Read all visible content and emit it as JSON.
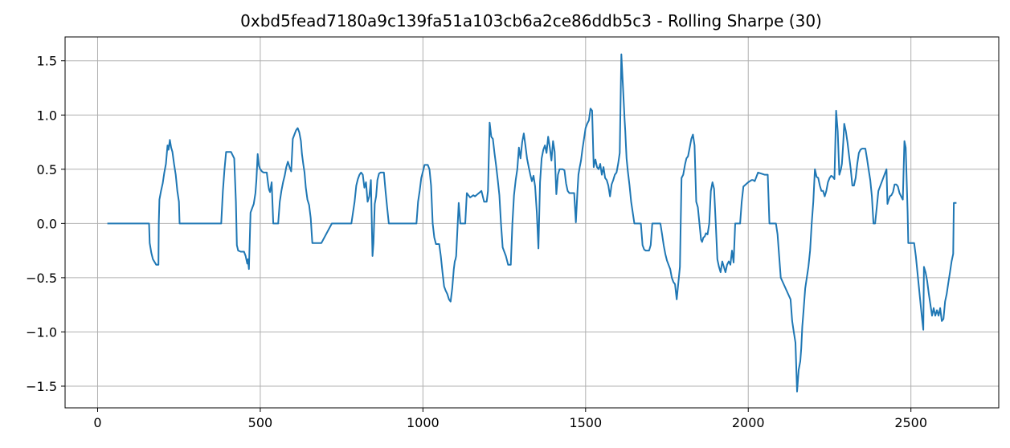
{
  "chart_data": {
    "type": "line",
    "title": "0xbd5fead7180a9c139fa51a103cb6a2ce86ddb5c3 - Rolling Sharpe (30)",
    "xlabel": "",
    "ylabel": "",
    "xlim": [
      -100,
      2770
    ],
    "ylim": [
      -1.7,
      1.72
    ],
    "xticks": [
      0,
      500,
      1000,
      1500,
      2000,
      2500
    ],
    "yticks": [
      -1.5,
      -1.0,
      -0.5,
      0.0,
      0.5,
      1.0,
      1.5
    ],
    "xtick_labels": [
      "0",
      "500",
      "1000",
      "1500",
      "2000",
      "2500"
    ],
    "ytick_labels": [
      "−1.5",
      "−1.0",
      "−0.5",
      "0.0",
      "0.5",
      "1.0",
      "1.5"
    ],
    "grid": true,
    "line_color": "#1f77b4",
    "series": [
      {
        "x": [
          30,
          158,
          160,
          165,
          170,
          180,
          187,
          188,
          190,
          195,
          200,
          205,
          210,
          215,
          218,
          222,
          226,
          230,
          235,
          240,
          245,
          250,
          252,
          255,
          380,
          385,
          390,
          395,
          400,
          410,
          420,
          425,
          428,
          432,
          440,
          445,
          450,
          455,
          460,
          462,
          465,
          470,
          475,
          480,
          485,
          488,
          492,
          496,
          500,
          505,
          510,
          515,
          520,
          525,
          527,
          530,
          535,
          540,
          550,
          555,
          560,
          565,
          570,
          575,
          580,
          585,
          590,
          595,
          600,
          605,
          610,
          615,
          620,
          625,
          628,
          632,
          636,
          640,
          645,
          650,
          655,
          660,
          665,
          670,
          675,
          680,
          685,
          688,
          720,
          730,
          780,
          790,
          795,
          800,
          805,
          810,
          815,
          820,
          825,
          830,
          835,
          840,
          845,
          848,
          852,
          856,
          860,
          865,
          870,
          875,
          880,
          885,
          890,
          895,
          900,
          980,
          985,
          990,
          995,
          1000,
          1005,
          1010,
          1015,
          1020,
          1025,
          1030,
          1035,
          1040,
          1045,
          1050,
          1055,
          1060,
          1065,
          1070,
          1075,
          1080,
          1085,
          1090,
          1095,
          1098,
          1100,
          1102,
          1110,
          1115,
          1118,
          1120,
          1125,
          1130,
          1135,
          1140,
          1145,
          1155,
          1160,
          1180,
          1188,
          1192,
          1196,
          1200,
          1205,
          1210,
          1215,
          1220,
          1225,
          1230,
          1235,
          1240,
          1245,
          1250,
          1255,
          1262,
          1266,
          1270,
          1275,
          1280,
          1285,
          1290,
          1295,
          1300,
          1305,
          1310,
          1315,
          1320,
          1325,
          1330,
          1335,
          1340,
          1345,
          1350,
          1355,
          1360,
          1365,
          1370,
          1375,
          1380,
          1385,
          1390,
          1395,
          1400,
          1405,
          1410,
          1415,
          1420,
          1425,
          1430,
          1435,
          1440,
          1445,
          1450,
          1455,
          1460,
          1465,
          1470,
          1475,
          1478,
          1482,
          1486,
          1490,
          1495,
          1500,
          1505,
          1510,
          1515,
          1520,
          1525,
          1530,
          1535,
          1540,
          1545,
          1550,
          1555,
          1560,
          1565,
          1570,
          1575,
          1580,
          1585,
          1590,
          1595,
          1600,
          1605,
          1610,
          1615,
          1620,
          1622,
          1624,
          1626,
          1630,
          1635,
          1640,
          1645,
          1650,
          1655,
          1660,
          1665,
          1670,
          1675,
          1680,
          1685,
          1690,
          1695,
          1700,
          1705,
          1710,
          1712,
          1715,
          1730,
          1735,
          1740,
          1745,
          1750,
          1755,
          1760,
          1765,
          1770,
          1775,
          1780,
          1785,
          1790,
          1795,
          1800,
          1803,
          1806,
          1810,
          1815,
          1820,
          1825,
          1830,
          1835,
          1840,
          1845,
          1850,
          1855,
          1858,
          1862,
          1866,
          1870,
          1875,
          1880,
          1885,
          1890,
          1895,
          1900,
          1905,
          1910,
          1915,
          1920,
          1925,
          1930,
          1935,
          1940,
          1945,
          1950,
          1955,
          1960,
          1965,
          1970,
          1975,
          1980,
          1985,
          2000,
          2010,
          2015,
          2020,
          2030,
          2040,
          2050,
          2060,
          2065,
          2070,
          2080,
          2085,
          2090,
          2095,
          2100,
          2130,
          2135,
          2140,
          2145,
          2150,
          2155,
          2160,
          2163,
          2166,
          2170,
          2175,
          2180,
          2185,
          2190,
          2195,
          2200,
          2205,
          2210,
          2215,
          2220,
          2225,
          2230,
          2235,
          2240,
          2245,
          2250,
          2255,
          2260,
          2265,
          2270,
          2275,
          2280,
          2285,
          2288,
          2290,
          2292,
          2295,
          2300,
          2305,
          2310,
          2315,
          2320,
          2325,
          2330,
          2335,
          2340,
          2345,
          2350,
          2355,
          2360,
          2365,
          2370,
          2375,
          2380,
          2385,
          2390,
          2395,
          2400,
          2425,
          2428,
          2430,
          2432,
          2435,
          2440,
          2445,
          2450,
          2455,
          2460,
          2465,
          2470,
          2475,
          2480,
          2484,
          2486,
          2488,
          2490,
          2492,
          2495,
          2500,
          2505,
          2510,
          2515,
          2520,
          2525,
          2530,
          2535,
          2538,
          2540,
          2545,
          2550,
          2555,
          2560,
          2565,
          2570,
          2575,
          2580,
          2585,
          2590,
          2595,
          2600,
          2605,
          2610,
          2615,
          2620,
          2625,
          2630,
          2632,
          2635,
          2640
        ],
        "y": [
          0.0,
          0.0,
          -0.18,
          -0.27,
          -0.33,
          -0.38,
          -0.38,
          0.0,
          0.22,
          0.3,
          0.37,
          0.47,
          0.55,
          0.72,
          0.68,
          0.77,
          0.7,
          0.66,
          0.55,
          0.45,
          0.3,
          0.2,
          0.0,
          0.0,
          0.0,
          0.3,
          0.5,
          0.66,
          0.66,
          0.66,
          0.6,
          0.2,
          -0.2,
          -0.25,
          -0.26,
          -0.26,
          -0.26,
          -0.3,
          -0.37,
          -0.33,
          -0.42,
          0.1,
          0.14,
          0.18,
          0.28,
          0.4,
          0.64,
          0.53,
          0.5,
          0.48,
          0.47,
          0.47,
          0.47,
          0.35,
          0.31,
          0.29,
          0.38,
          0.0,
          0.0,
          0.0,
          0.2,
          0.3,
          0.38,
          0.44,
          0.52,
          0.57,
          0.52,
          0.48,
          0.78,
          0.82,
          0.86,
          0.88,
          0.84,
          0.76,
          0.64,
          0.55,
          0.47,
          0.33,
          0.22,
          0.17,
          0.05,
          -0.18,
          -0.18,
          -0.18,
          -0.18,
          -0.18,
          -0.18,
          -0.18,
          0.0,
          0.0,
          0.0,
          0.2,
          0.35,
          0.41,
          0.45,
          0.47,
          0.45,
          0.33,
          0.38,
          0.2,
          0.25,
          0.4,
          -0.3,
          -0.18,
          0.18,
          0.25,
          0.4,
          0.46,
          0.47,
          0.47,
          0.47,
          0.3,
          0.15,
          0.0,
          0.0,
          0.0,
          0.2,
          0.3,
          0.42,
          0.48,
          0.54,
          0.54,
          0.54,
          0.5,
          0.35,
          0.0,
          -0.13,
          -0.19,
          -0.19,
          -0.19,
          -0.3,
          -0.45,
          -0.58,
          -0.62,
          -0.65,
          -0.7,
          -0.72,
          -0.6,
          -0.42,
          -0.35,
          -0.33,
          -0.3,
          0.19,
          0.0,
          0.0,
          0.0,
          0.0,
          0.0,
          0.28,
          0.26,
          0.24,
          0.26,
          0.25,
          0.3,
          0.2,
          0.2,
          0.2,
          0.3,
          0.93,
          0.8,
          0.78,
          0.65,
          0.53,
          0.4,
          0.26,
          0.0,
          -0.22,
          -0.26,
          -0.3,
          -0.38,
          -0.38,
          -0.38,
          0.0,
          0.26,
          0.4,
          0.5,
          0.7,
          0.6,
          0.75,
          0.83,
          0.72,
          0.6,
          0.52,
          0.45,
          0.39,
          0.44,
          0.34,
          0.1,
          -0.23,
          0.38,
          0.6,
          0.68,
          0.72,
          0.65,
          0.8,
          0.7,
          0.58,
          0.76,
          0.66,
          0.27,
          0.45,
          0.5,
          0.5,
          0.5,
          0.49,
          0.37,
          0.3,
          0.28,
          0.28,
          0.28,
          0.28,
          0.01,
          0.3,
          0.45,
          0.52,
          0.58,
          0.68,
          0.78,
          0.88,
          0.92,
          0.95,
          1.06,
          1.04,
          0.52,
          0.59,
          0.52,
          0.5,
          0.55,
          0.45,
          0.52,
          0.42,
          0.4,
          0.35,
          0.25,
          0.36,
          0.4,
          0.45,
          0.47,
          0.55,
          0.65,
          1.56,
          1.25,
          0.95,
          0.85,
          0.72,
          0.6,
          0.48,
          0.35,
          0.2,
          0.1,
          0.0,
          0.0,
          0.0,
          0.0,
          0.0,
          -0.2,
          -0.24,
          -0.25,
          -0.25,
          -0.25,
          -0.2,
          0.0,
          0.0,
          0.0,
          0.0,
          0.0,
          -0.1,
          -0.2,
          -0.28,
          -0.34,
          -0.38,
          -0.42,
          -0.5,
          -0.54,
          -0.56,
          -0.7,
          -0.55,
          -0.4,
          0.42,
          0.45,
          0.5,
          0.55,
          0.6,
          0.62,
          0.7,
          0.78,
          0.82,
          0.72,
          0.2,
          0.15,
          0.0,
          -0.15,
          -0.17,
          -0.13,
          -0.12,
          -0.09,
          -0.1,
          0.0,
          0.3,
          0.38,
          0.32,
          0.0,
          -0.33,
          -0.4,
          -0.45,
          -0.35,
          -0.4,
          -0.45,
          -0.38,
          -0.35,
          -0.38,
          -0.25,
          -0.36,
          0.0,
          0.0,
          0.0,
          0.0,
          0.2,
          0.34,
          0.38,
          0.4,
          0.4,
          0.39,
          0.47,
          0.46,
          0.45,
          0.45,
          0.0,
          0.0,
          0.0,
          0.0,
          -0.1,
          -0.3,
          -0.5,
          -0.7,
          -0.9,
          -1.0,
          -1.1,
          -1.55,
          -1.35,
          -1.27,
          -1.15,
          -0.95,
          -0.8,
          -0.6,
          -0.5,
          -0.4,
          -0.25,
          0.0,
          0.2,
          0.5,
          0.43,
          0.42,
          0.35,
          0.3,
          0.3,
          0.25,
          0.3,
          0.38,
          0.42,
          0.44,
          0.43,
          0.41,
          1.04,
          0.85,
          0.45,
          0.5,
          0.55,
          0.65,
          0.75,
          0.92,
          0.85,
          0.75,
          0.62,
          0.5,
          0.35,
          0.35,
          0.42,
          0.55,
          0.65,
          0.68,
          0.69,
          0.69,
          0.69,
          0.6,
          0.5,
          0.4,
          0.25,
          0.0,
          0.0,
          0.15,
          0.3,
          0.5,
          0.18,
          0.2,
          0.22,
          0.25,
          0.26,
          0.29,
          0.36,
          0.36,
          0.34,
          0.28,
          0.25,
          0.22,
          0.76,
          0.7,
          0.5,
          0.3,
          0.1,
          -0.18,
          -0.18,
          -0.18,
          -0.18,
          -0.18,
          -0.3,
          -0.45,
          -0.6,
          -0.75,
          -0.9,
          -0.98,
          -0.4,
          -0.45,
          -0.53,
          -0.65,
          -0.75,
          -0.85,
          -0.78,
          -0.85,
          -0.8,
          -0.85,
          -0.78,
          -0.9,
          -0.88,
          -0.72,
          -0.65,
          -0.55,
          -0.45,
          -0.35,
          -0.28,
          0.19,
          0.19,
          0.19
        ]
      }
    ]
  }
}
